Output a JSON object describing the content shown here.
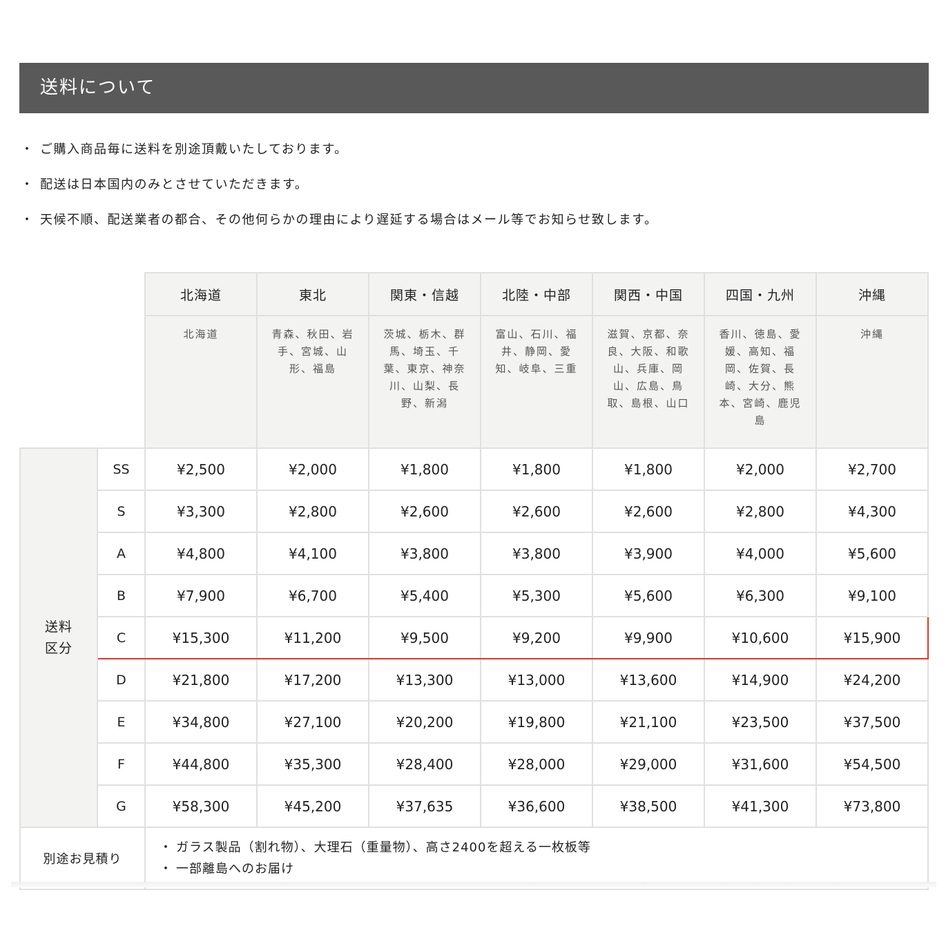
{
  "title": "送料について",
  "notes": [
    "ご購入商品毎に送料を別途頂戴いたしております。",
    "配送は日本国内のみとさせていただきます。",
    "天候不順、配送業者の都合、その他何らかの理由により遅延する場合はメール等でお知らせ致します。"
  ],
  "bullet": "・",
  "table": {
    "regions": [
      {
        "name": "北海道",
        "prefs": "北海道"
      },
      {
        "name": "東北",
        "prefs": "青森、秋田、岩手、宮城、山形、福島"
      },
      {
        "name": "関東・信越",
        "prefs": "茨城、栃木、群馬、埼玉、千葉、東京、神奈川、山梨、長野、新潟"
      },
      {
        "name": "北陸・中部",
        "prefs": "富山、石川、福井、静岡、愛知、岐阜、三重"
      },
      {
        "name": "関西・中国",
        "prefs": "滋賀、京都、奈良、大阪、和歌山、兵庫、岡山、広島、鳥取、島根、山口"
      },
      {
        "name": "四国・九州",
        "prefs": "香川、徳島、愛媛、高知、福岡、佐賀、長崎、大分、熊本、宮崎、鹿児島"
      },
      {
        "name": "沖縄",
        "prefs": "沖縄"
      }
    ],
    "side_label": [
      "送料",
      "区分"
    ],
    "highlight_color": "#d9382c",
    "rows": [
      {
        "size": "SS",
        "prices": [
          "¥2,500",
          "¥2,000",
          "¥1,800",
          "¥1,800",
          "¥1,800",
          "¥2,000",
          "¥2,700"
        ]
      },
      {
        "size": "S",
        "prices": [
          "¥3,300",
          "¥2,800",
          "¥2,600",
          "¥2,600",
          "¥2,600",
          "¥2,800",
          "¥4,300"
        ]
      },
      {
        "size": "A",
        "prices": [
          "¥4,800",
          "¥4,100",
          "¥3,800",
          "¥3,800",
          "¥3,900",
          "¥4,000",
          "¥5,600"
        ]
      },
      {
        "size": "B",
        "prices": [
          "¥7,900",
          "¥6,700",
          "¥5,400",
          "¥5,300",
          "¥5,600",
          "¥6,300",
          "¥9,100"
        ]
      },
      {
        "size": "C",
        "highlighted": true,
        "prices": [
          "¥15,300",
          "¥11,200",
          "¥9,500",
          "¥9,200",
          "¥9,900",
          "¥10,600",
          "¥15,900"
        ]
      },
      {
        "size": "D",
        "prices": [
          "¥21,800",
          "¥17,200",
          "¥13,300",
          "¥13,000",
          "¥13,600",
          "¥14,900",
          "¥24,200"
        ]
      },
      {
        "size": "E",
        "prices": [
          "¥34,800",
          "¥27,100",
          "¥20,200",
          "¥19,800",
          "¥21,100",
          "¥23,500",
          "¥37,500"
        ]
      },
      {
        "size": "F",
        "prices": [
          "¥44,800",
          "¥35,300",
          "¥28,400",
          "¥28,000",
          "¥29,000",
          "¥31,600",
          "¥54,500"
        ]
      },
      {
        "size": "G",
        "prices": [
          "¥58,300",
          "¥45,200",
          "¥37,635",
          "¥36,600",
          "¥38,500",
          "¥41,300",
          "¥73,800"
        ]
      }
    ],
    "extra_label": "別途お見積り",
    "extra_items": [
      "ガラス製品（割れ物）、大理石（重量物）、高さ2400を超える一枚板等",
      "一部離島へのお届け"
    ]
  }
}
